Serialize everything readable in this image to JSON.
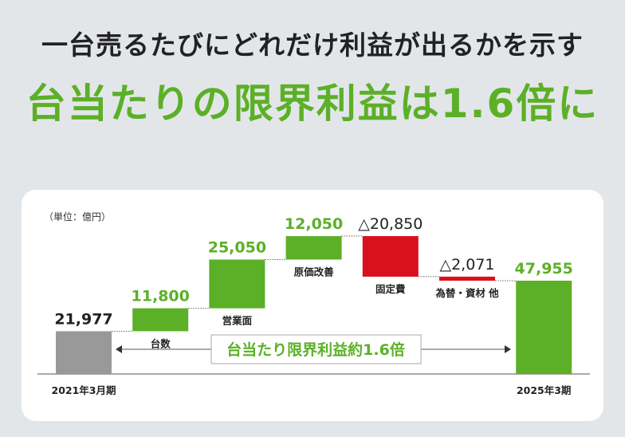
{
  "header": {
    "subtitle": "一台売るたびにどれだけ利益が出るかを示す",
    "title": "台当たりの限界利益は1.6倍に"
  },
  "chart_data": {
    "type": "waterfall",
    "unit_label": "（単位：億円）",
    "categories": [
      "2021年3月期",
      "台数",
      "営業面",
      "原価改善",
      "固定費",
      "為替・資材 他",
      "2025年3期"
    ],
    "value_labels": [
      "21,977",
      "11,800",
      "25,050",
      "12,050",
      "△20,850",
      "△2,071",
      "47,955"
    ],
    "values": [
      21977,
      11800,
      25050,
      12050,
      -20850,
      -2071,
      47955
    ],
    "kinds": [
      "total",
      "delta",
      "delta",
      "delta",
      "delta",
      "delta",
      "total"
    ],
    "annotation": "台当たり限界利益約1.6倍",
    "colors": {
      "start": "#999999",
      "increase": "#5cb027",
      "decrease": "#d9101e",
      "end": "#5cb027",
      "label_green": "#5cb027",
      "label_dark": "#222222"
    }
  }
}
